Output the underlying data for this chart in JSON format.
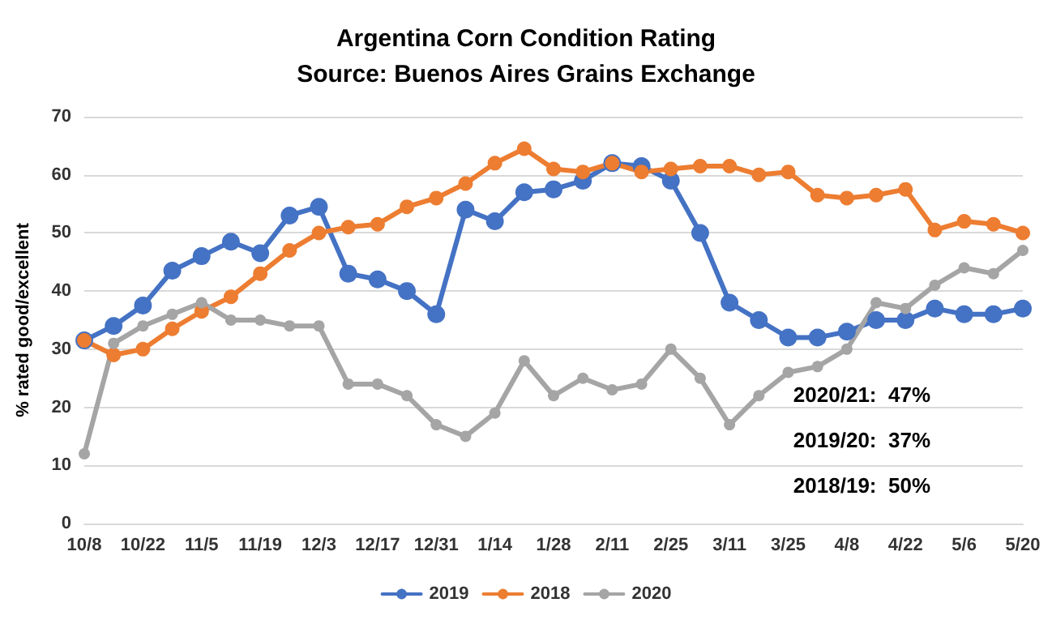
{
  "chart_data": {
    "type": "line",
    "title": "Argentina Corn Condition Rating",
    "subtitle": "Source: Buenos Aires Grains Exchange",
    "ylabel": "% rated good/excellent",
    "categories": [
      "10/8",
      null,
      "10/22",
      null,
      "11/5",
      null,
      "11/19",
      null,
      "12/3",
      null,
      "12/17",
      null,
      "12/31",
      null,
      "1/14",
      null,
      "1/28",
      null,
      "2/11",
      null,
      "2/25",
      null,
      "3/11",
      null,
      "3/25",
      null,
      "4/8",
      null,
      "4/22",
      null,
      "5/6",
      null,
      "5/20"
    ],
    "series": [
      {
        "name": "2019",
        "color": "#4472c4",
        "values": [
          31.5,
          34,
          37.5,
          43.5,
          46,
          48.5,
          46.5,
          53,
          54.5,
          43,
          42,
          40,
          36,
          54,
          52,
          57,
          57.5,
          59,
          62,
          61.5,
          59,
          50,
          38,
          35,
          32,
          32,
          33,
          35,
          35,
          37,
          36,
          36,
          37
        ]
      },
      {
        "name": "2018",
        "color": "#ed7d31",
        "values": [
          31.5,
          29,
          30,
          33.5,
          36.5,
          39,
          43,
          47,
          50,
          51,
          51.5,
          54.5,
          56,
          58.5,
          62,
          64.5,
          61,
          60.5,
          62,
          60.5,
          61,
          61.5,
          61.5,
          60,
          60.5,
          56.5,
          56,
          56.5,
          57.5,
          50.5,
          52,
          51.5,
          50
        ]
      },
      {
        "name": "2020",
        "color": "#a5a5a5",
        "values": [
          12,
          31,
          34,
          36,
          38,
          35,
          35,
          34,
          34,
          24,
          24,
          22,
          17,
          15,
          19,
          28,
          22,
          25,
          23,
          24,
          30,
          25,
          17,
          22,
          26,
          27,
          30,
          38,
          37,
          41,
          44,
          43,
          47
        ]
      }
    ],
    "ylim": [
      0,
      70
    ],
    "yticks": [
      0,
      10,
      20,
      30,
      40,
      50,
      60,
      70
    ],
    "grid": "y",
    "legend": "bottom",
    "marker": "circle",
    "line_style": "solid",
    "annotations": [
      "2020/21:  47%",
      "2019/20:  37%",
      "2018/19:  50%"
    ]
  }
}
